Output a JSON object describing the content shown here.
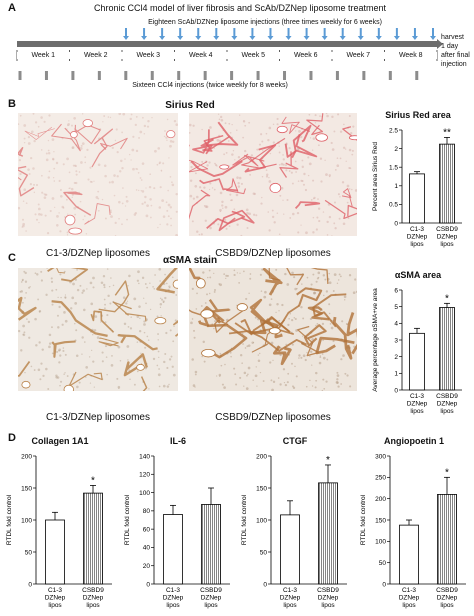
{
  "panelA": {
    "letter": "A",
    "title": "Chronic CCl4 model of liver fibrosis and ScAb/DZNep liposome treatment",
    "top_note": "Eighteen ScAb/DZNep liposome injections (three times weekly for 6 weeks)",
    "weeks": [
      "Week 1",
      "Week 2",
      "Week 3",
      "Week 4",
      "Week 5",
      "Week 6",
      "Week 7",
      "Week 8"
    ],
    "bottom_note": "Sixteen CCl4 injections (twice weekly for 8 weeks)",
    "harvest_lines": [
      "harvest",
      "1 day",
      "after final",
      "injection"
    ],
    "colors": {
      "liposome_arrow": "#5b9bd5",
      "ccl4_arrow": "#8c8c8c",
      "timeline": "#6d6d6d"
    }
  },
  "panelB": {
    "letter": "B",
    "stain_title": "Sirius Red",
    "captions": [
      "C1-3/DZNep liposomes",
      "CSBD9/DZNep liposomes"
    ]
  },
  "panelC": {
    "letter": "C",
    "stain_title": "αSMA stain",
    "captions": [
      "C1-3/DZNep liposomes",
      "CSBD9/DZNep liposomes"
    ]
  },
  "panelD": {
    "letter": "D"
  },
  "chart_data": [
    {
      "id": "sirius",
      "type": "bar",
      "title": "Sirius Red area",
      "ylabel": "Percent area Sirius Red",
      "ylim": [
        0,
        2.5
      ],
      "yticks": [
        "0",
        "0.5",
        "1",
        "1.5",
        "2",
        "2.5"
      ],
      "categories": [
        [
          "C1-3",
          "DZNep",
          "lipos"
        ],
        [
          "CSBD9",
          "DZNep",
          "lipos"
        ]
      ],
      "values": [
        1.32,
        2.12
      ],
      "errors": [
        0.06,
        0.18
      ],
      "annotation": "**"
    },
    {
      "id": "asma",
      "type": "bar",
      "title": "αSMA area",
      "ylabel": "Average percentage αSMA+ve area",
      "ylim": [
        0,
        6
      ],
      "yticks": [
        "0",
        "1",
        "2",
        "3",
        "4",
        "5",
        "6"
      ],
      "categories": [
        [
          "C1-3",
          "DZNep",
          "lipos"
        ],
        [
          "CSBD9",
          "DZNep",
          "lipos"
        ]
      ],
      "values": [
        3.4,
        4.95
      ],
      "errors": [
        0.3,
        0.25
      ],
      "annotation": "*"
    },
    {
      "id": "col1a1",
      "type": "bar",
      "title": "Collagen 1A1",
      "ylabel": "RTDL fold control",
      "ylim": [
        0,
        200
      ],
      "yticks": [
        "0",
        "50",
        "100",
        "150",
        "200"
      ],
      "categories": [
        [
          "C1-3",
          "DZNep",
          "lipos"
        ],
        [
          "CSBD9",
          "DZNep",
          "lipos"
        ]
      ],
      "values": [
        100,
        142
      ],
      "errors": [
        12,
        12
      ],
      "annotation": "*"
    },
    {
      "id": "il6",
      "type": "bar",
      "title": "IL-6",
      "ylabel": "RTDL fold control",
      "ylim": [
        0,
        140
      ],
      "yticks": [
        "0",
        "20",
        "40",
        "60",
        "80",
        "100",
        "120",
        "140"
      ],
      "categories": [
        [
          "C1-3",
          "DZNep",
          "lipos"
        ],
        [
          "CSBD9",
          "DZNep",
          "lipos"
        ]
      ],
      "values": [
        76,
        87
      ],
      "errors": [
        10,
        18
      ],
      "annotation": ""
    },
    {
      "id": "ctgf",
      "type": "bar",
      "title": "CTGF",
      "ylabel": "RTDL fold control",
      "ylim": [
        0,
        200
      ],
      "yticks": [
        "0",
        "50",
        "100",
        "150",
        "200"
      ],
      "categories": [
        [
          "C1-3",
          "DZNep",
          "lipos"
        ],
        [
          "CSBD9",
          "DZNep",
          "lipos"
        ]
      ],
      "values": [
        108,
        158
      ],
      "errors": [
        22,
        28
      ],
      "annotation": "*"
    },
    {
      "id": "angpt1",
      "type": "bar",
      "title": "Angiopoetin 1",
      "ylabel": "RTDL fold control",
      "ylim": [
        0,
        300
      ],
      "yticks": [
        "0",
        "50",
        "100",
        "150",
        "200",
        "250",
        "300"
      ],
      "categories": [
        [
          "C1-3",
          "DZNep",
          "lipos"
        ],
        [
          "CSBD9",
          "DZNep",
          "lipos"
        ]
      ],
      "values": [
        138,
        210
      ],
      "errors": [
        12,
        40
      ],
      "annotation": "*"
    }
  ]
}
